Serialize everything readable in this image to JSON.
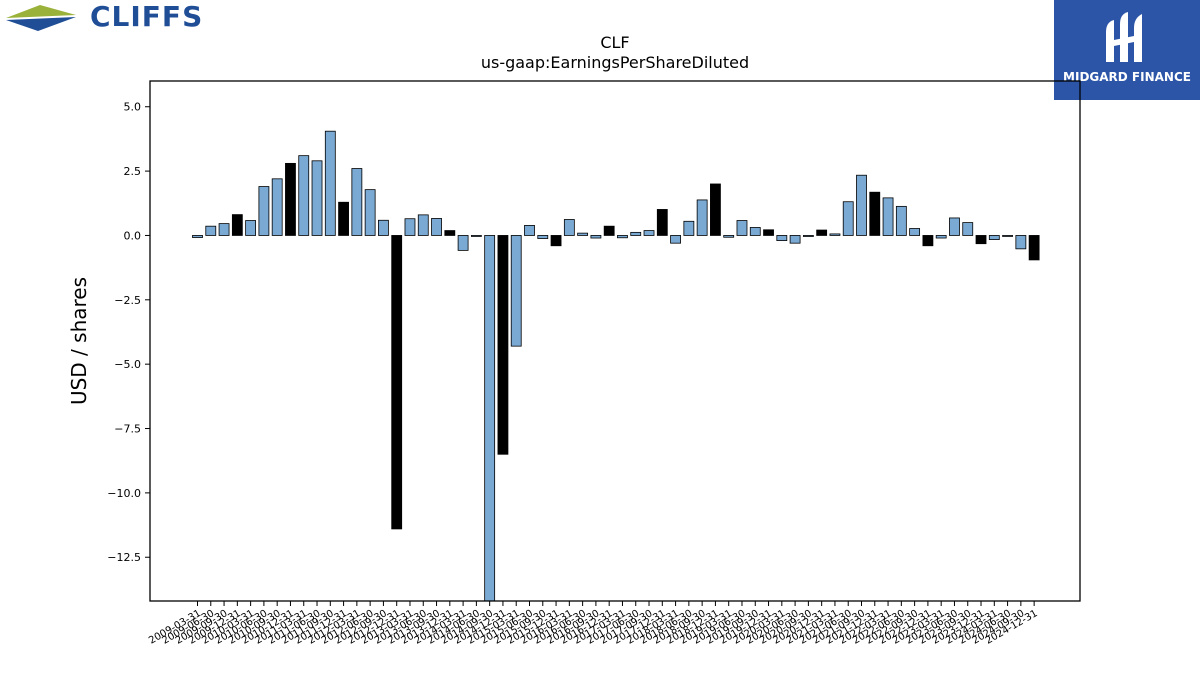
{
  "branding": {
    "company_logo_text": "CLIFFS",
    "badge_text": "MIDGARD FINANCE",
    "colors": {
      "primary": "#1f4e96",
      "accent": "#9ab23a",
      "badge_bg": "#2c55a8"
    }
  },
  "chart_data": {
    "type": "bar",
    "title": "CLF",
    "subtitle": "us-gaap:EarningsPerShareDiluted",
    "xlabel": "",
    "ylabel": "USD / shares",
    "ylim": [
      -14.2,
      6.0
    ],
    "yticks": [
      5.0,
      2.5,
      0.0,
      -2.5,
      -5.0,
      -7.5,
      -10.0,
      -12.5
    ],
    "grid": false,
    "colors": {
      "quarterly": "#7aaad4",
      "annual": "#000000",
      "edge": "#000000"
    },
    "categories": [
      "2009-03-31",
      "2009-06-30",
      "2009-09-30",
      "2009-12-31",
      "2010-03-31",
      "2010-06-30",
      "2010-09-30",
      "2010-12-31",
      "2011-03-31",
      "2011-06-30",
      "2011-09-30",
      "2011-12-31",
      "2012-03-31",
      "2012-06-30",
      "2012-09-30",
      "2012-12-31",
      "2013-03-31",
      "2013-06-30",
      "2013-09-30",
      "2013-12-31",
      "2014-03-31",
      "2014-06-30",
      "2014-09-30",
      "2014-12-31",
      "2015-03-31",
      "2015-06-30",
      "2015-09-30",
      "2015-12-31",
      "2016-03-31",
      "2016-06-30",
      "2016-09-30",
      "2016-12-31",
      "2017-03-31",
      "2017-06-30",
      "2017-09-30",
      "2017-12-31",
      "2018-03-31",
      "2018-06-30",
      "2018-09-30",
      "2018-12-31",
      "2019-03-31",
      "2019-06-30",
      "2019-09-30",
      "2019-12-31",
      "2020-03-31",
      "2020-06-30",
      "2020-09-30",
      "2020-12-31",
      "2021-03-31",
      "2021-06-30",
      "2021-09-30",
      "2021-12-31",
      "2022-03-31",
      "2022-06-30",
      "2022-09-30",
      "2022-12-31",
      "2023-03-31",
      "2023-06-30",
      "2023-09-30",
      "2023-12-31",
      "2024-03-31",
      "2024-06-30",
      "2024-09-30",
      "2024-12-31"
    ],
    "values": [
      -0.08,
      0.36,
      0.46,
      0.81,
      0.58,
      1.9,
      2.2,
      2.8,
      3.1,
      2.9,
      4.05,
      1.29,
      2.6,
      1.78,
      0.59,
      -11.4,
      0.65,
      0.8,
      0.66,
      0.19,
      -0.58,
      -0.01,
      -14.2,
      -8.5,
      -4.3,
      0.39,
      -0.12,
      -0.4,
      0.62,
      0.09,
      -0.1,
      0.36,
      -0.09,
      0.12,
      0.19,
      1.01,
      -0.3,
      0.55,
      1.38,
      2.0,
      -0.07,
      0.58,
      0.31,
      0.22,
      -0.2,
      -0.3,
      -0.04,
      0.21,
      0.06,
      1.31,
      2.34,
      1.68,
      1.46,
      1.13,
      0.27,
      -0.4,
      -0.1,
      0.68,
      0.5,
      -0.32,
      -0.16,
      -0.02,
      -0.52,
      -0.95
    ],
    "annual_flags": [
      0,
      0,
      0,
      1,
      0,
      0,
      0,
      1,
      0,
      0,
      0,
      1,
      0,
      0,
      0,
      1,
      0,
      0,
      0,
      1,
      0,
      0,
      0,
      1,
      0,
      0,
      0,
      1,
      0,
      0,
      0,
      1,
      0,
      0,
      0,
      1,
      0,
      0,
      0,
      1,
      0,
      0,
      0,
      1,
      0,
      0,
      0,
      1,
      0,
      0,
      0,
      1,
      0,
      0,
      0,
      1,
      0,
      0,
      0,
      1,
      0,
      0,
      0,
      1
    ]
  }
}
